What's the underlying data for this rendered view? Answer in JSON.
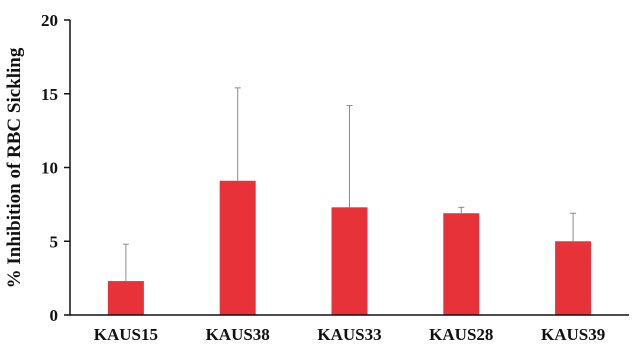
{
  "chart_data": {
    "type": "bar",
    "title": "",
    "xlabel": "",
    "ylabel": "% Inhibition of RBC Sickling",
    "categories": [
      "KAUS15",
      "KAUS38",
      "KAUS33",
      "KAUS28",
      "KAUS39"
    ],
    "values": [
      2.3,
      9.1,
      7.3,
      6.9,
      5.0
    ],
    "error_plus": [
      2.5,
      6.3,
      6.9,
      0.4,
      1.9
    ],
    "ylim": [
      0,
      20
    ],
    "yticks": [
      "0",
      "5",
      "10",
      "15",
      "20"
    ],
    "grid": false,
    "legend": "none",
    "bar_color": "#e8323a",
    "axis_color": "#111111"
  }
}
